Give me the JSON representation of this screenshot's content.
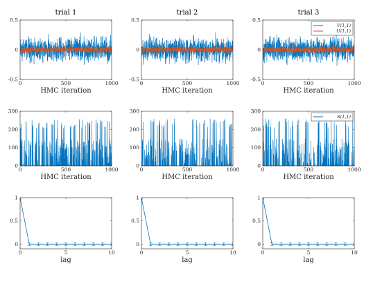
{
  "chart_data": [
    {
      "id": "p11",
      "type": "line",
      "title": "trial 1",
      "xlabel": "HMC iteration",
      "xlim": [
        0,
        1000
      ],
      "ylim": [
        -0.5,
        0.5
      ],
      "xticks": [
        0,
        500,
        1000
      ],
      "yticks": [
        -0.5,
        0,
        0.5
      ],
      "ytick_labels": [
        "-0.5",
        "0",
        "0.5"
      ],
      "series": [
        {
          "name": "V(1,1)",
          "color": "#0072BD",
          "kind": "noise",
          "mean": 0,
          "amplitude": 0.33,
          "seed": 11
        },
        {
          "name": "U(1,1)",
          "color": "#D95319",
          "kind": "noise",
          "mean": 0,
          "amplitude": 0.09,
          "seed": 12
        }
      ]
    },
    {
      "id": "p12",
      "type": "line",
      "title": "trial 2",
      "xlabel": "HMC iteration",
      "xlim": [
        0,
        1000
      ],
      "ylim": [
        -0.5,
        0.5
      ],
      "xticks": [
        0,
        500,
        1000
      ],
      "yticks": [
        -0.5,
        0,
        0.5
      ],
      "ytick_labels": [
        "-0.5",
        "0",
        "0.5"
      ],
      "series": [
        {
          "name": "V(1,1)",
          "color": "#0072BD",
          "kind": "noise",
          "mean": 0,
          "amplitude": 0.33,
          "seed": 21
        },
        {
          "name": "U(1,1)",
          "color": "#D95319",
          "kind": "noise",
          "mean": 0,
          "amplitude": 0.09,
          "seed": 22
        }
      ]
    },
    {
      "id": "p13",
      "type": "line",
      "title": "trial 3",
      "xlabel": "HMC iteration",
      "xlim": [
        0,
        1000
      ],
      "ylim": [
        -0.5,
        0.5
      ],
      "xticks": [
        0,
        500,
        1000
      ],
      "yticks": [
        -0.5,
        0,
        0.5
      ],
      "ytick_labels": [
        "-0.5",
        "0",
        "0.5"
      ],
      "legend": {
        "position": "top-right",
        "entries": [
          "V(1,1)",
          "U(1,1)"
        ]
      },
      "series": [
        {
          "name": "V(1,1)",
          "color": "#0072BD",
          "kind": "noise",
          "mean": 0,
          "amplitude": 0.33,
          "seed": 31
        },
        {
          "name": "U(1,1)",
          "color": "#D95319",
          "kind": "noise",
          "mean": 0,
          "amplitude": 0.09,
          "seed": 32
        }
      ]
    },
    {
      "id": "p21",
      "type": "line",
      "xlabel": "HMC iteration",
      "xlim": [
        0,
        1000
      ],
      "ylim": [
        0,
        300
      ],
      "xticks": [
        0,
        500,
        1000
      ],
      "yticks": [
        0,
        100,
        200,
        300
      ],
      "ytick_labels": [
        "0",
        "100",
        "200",
        "300"
      ],
      "series": [
        {
          "name": "S(1,1)",
          "color": "#0072BD",
          "kind": "spikes",
          "seed": 41,
          "spikes_max": 258,
          "start": 110
        }
      ]
    },
    {
      "id": "p22",
      "type": "line",
      "xlabel": "HMC iteration",
      "xlim": [
        0,
        1000
      ],
      "ylim": [
        0,
        300
      ],
      "xticks": [
        0,
        500,
        1000
      ],
      "yticks": [
        0,
        100,
        200,
        300
      ],
      "ytick_labels": [
        "0",
        "100",
        "200",
        "300"
      ],
      "series": [
        {
          "name": "S(1,1)",
          "color": "#0072BD",
          "kind": "spikes",
          "seed": 51,
          "spikes_max": 262,
          "start": 250
        }
      ]
    },
    {
      "id": "p23",
      "type": "line",
      "xlabel": "HMC iteration",
      "xlim": [
        0,
        1000
      ],
      "ylim": [
        0,
        300
      ],
      "xticks": [
        0,
        500,
        1000
      ],
      "yticks": [
        0,
        100,
        200,
        300
      ],
      "ytick_labels": [
        "0",
        "100",
        "200",
        "300"
      ],
      "legend": {
        "position": "top-right",
        "entries": [
          "S(1,1)"
        ]
      },
      "series": [
        {
          "name": "S(1,1)",
          "color": "#0072BD",
          "kind": "spikes",
          "seed": 61,
          "spikes_max": 262,
          "start": 260
        }
      ]
    },
    {
      "id": "p31",
      "type": "line",
      "xlabel": "lag",
      "xlim": [
        0,
        10
      ],
      "ylim": [
        -0.1,
        1
      ],
      "xticks": [
        0,
        5,
        10
      ],
      "yticks": [
        0,
        0.5,
        1
      ],
      "ytick_labels": [
        "0",
        "0.5",
        "1"
      ],
      "series": [
        {
          "color": "#0072BD",
          "kind": "acf",
          "x": [
            0,
            1,
            2,
            3,
            4,
            5,
            6,
            7,
            8,
            9,
            10
          ],
          "y": [
            1,
            0,
            0,
            0,
            0,
            0,
            0,
            0,
            0,
            0,
            0
          ],
          "err": 0.03
        }
      ]
    },
    {
      "id": "p32",
      "type": "line",
      "xlabel": "lag",
      "xlim": [
        0,
        10
      ],
      "ylim": [
        -0.1,
        1
      ],
      "xticks": [
        0,
        5,
        10
      ],
      "yticks": [
        0,
        0.5,
        1
      ],
      "ytick_labels": [
        "0",
        "0.5",
        "1"
      ],
      "series": [
        {
          "color": "#0072BD",
          "kind": "acf",
          "x": [
            0,
            1,
            2,
            3,
            4,
            5,
            6,
            7,
            8,
            9,
            10
          ],
          "y": [
            1,
            0,
            0,
            0,
            0,
            0,
            0,
            0,
            0,
            0,
            0
          ],
          "err": 0.03
        }
      ]
    },
    {
      "id": "p33",
      "type": "line",
      "xlabel": "lag",
      "xlim": [
        0,
        10
      ],
      "ylim": [
        -0.1,
        1
      ],
      "xticks": [
        0,
        5,
        10
      ],
      "yticks": [
        0,
        0.5,
        1
      ],
      "ytick_labels": [
        "0",
        "0.5",
        "1"
      ],
      "series": [
        {
          "color": "#0072BD",
          "kind": "acf",
          "x": [
            0,
            1,
            2,
            3,
            4,
            5,
            6,
            7,
            8,
            9,
            10
          ],
          "y": [
            1,
            0,
            0,
            0,
            0,
            0,
            0,
            0,
            0,
            0,
            0
          ],
          "err": 0.03
        }
      ]
    }
  ]
}
